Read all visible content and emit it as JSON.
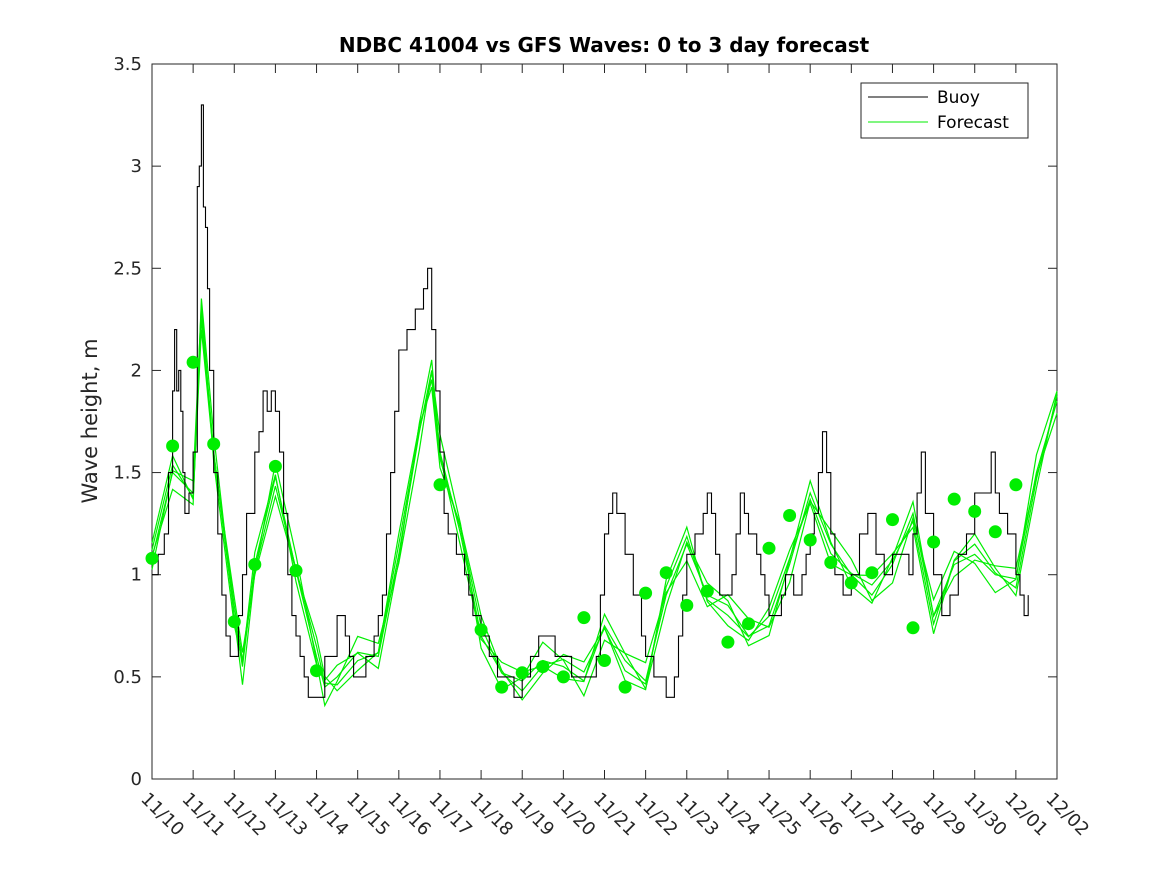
{
  "chart_data": {
    "type": "line",
    "title": "NDBC 41004 vs GFS Waves: 0 to 3 day forecast",
    "xlabel": "",
    "ylabel": "Wave height, m",
    "ylim": [
      0,
      3.5
    ],
    "yticks": [
      0,
      0.5,
      1,
      1.5,
      2,
      2.5,
      3,
      3.5
    ],
    "ytick_labels": [
      "0",
      "0.5",
      "1",
      "1.5",
      "2",
      "2.5",
      "3",
      "3.5"
    ],
    "xlim": [
      0,
      22
    ],
    "x_tick_labels": [
      "11/10",
      "11/11",
      "11/12",
      "11/13",
      "11/14",
      "11/15",
      "11/16",
      "11/17",
      "11/18",
      "11/19",
      "11/20",
      "11/21",
      "11/22",
      "11/23",
      "11/24",
      "11/25",
      "11/26",
      "11/27",
      "11/28",
      "11/29",
      "11/30",
      "12/01",
      "12/02"
    ],
    "legend": {
      "location": "top-right",
      "entries": [
        "Buoy",
        "Forecast"
      ]
    },
    "colors": {
      "buoy": "#000000",
      "forecast": "#00ee00",
      "analysis_dots": "#00ee00",
      "axes": "#262626"
    },
    "series": [
      {
        "name": "Buoy",
        "x": [
          0,
          0.15,
          0.3,
          0.4,
          0.5,
          0.55,
          0.6,
          0.65,
          0.7,
          0.75,
          0.8,
          0.9,
          1.0,
          1.1,
          1.15,
          1.2,
          1.25,
          1.3,
          1.35,
          1.4,
          1.5,
          1.6,
          1.7,
          1.8,
          1.9,
          2.0,
          2.1,
          2.2,
          2.3,
          2.5,
          2.6,
          2.7,
          2.8,
          2.9,
          3.0,
          3.1,
          3.2,
          3.3,
          3.4,
          3.5,
          3.6,
          3.7,
          3.8,
          3.9,
          4.0,
          4.2,
          4.5,
          4.7,
          4.8,
          4.9,
          5.0,
          5.2,
          5.4,
          5.5,
          5.6,
          5.7,
          5.8,
          5.9,
          6.0,
          6.2,
          6.4,
          6.6,
          6.7,
          6.8,
          6.9,
          7.0,
          7.1,
          7.2,
          7.3,
          7.4,
          7.5,
          7.6,
          7.7,
          7.8,
          8.0,
          8.2,
          8.4,
          8.6,
          8.7,
          8.8,
          9.0,
          9.2,
          9.4,
          9.6,
          9.8,
          10.0,
          10.2,
          10.3,
          10.4,
          10.6,
          10.7,
          10.8,
          10.9,
          11.0,
          11.1,
          11.2,
          11.3,
          11.5,
          11.7,
          11.9,
          12.0,
          12.2,
          12.4,
          12.5,
          12.6,
          12.7,
          12.8,
          12.9,
          13.0,
          13.2,
          13.4,
          13.5,
          13.6,
          13.7,
          13.8,
          14.0,
          14.1,
          14.2,
          14.3,
          14.4,
          14.5,
          14.7,
          14.8,
          14.9,
          15.0,
          15.2,
          15.3,
          15.4,
          15.5,
          15.6,
          15.7,
          15.8,
          15.9,
          16.0,
          16.1,
          16.2,
          16.3,
          16.4,
          16.5,
          16.6,
          16.8,
          17.0,
          17.2,
          17.4,
          17.6,
          17.8,
          18.0,
          18.2,
          18.4,
          18.5,
          18.6,
          18.7,
          18.8,
          19.0,
          19.2,
          19.4,
          19.6,
          19.8,
          20.0,
          20.2,
          20.4,
          20.5,
          20.6,
          20.8,
          21.0,
          21.1,
          21.2,
          21.3
        ],
        "values": [
          1.0,
          1.1,
          1.2,
          1.5,
          1.9,
          2.2,
          1.9,
          2.0,
          1.8,
          1.5,
          1.3,
          1.4,
          1.6,
          2.9,
          3.0,
          3.3,
          2.8,
          2.7,
          2.4,
          2.0,
          1.5,
          1.2,
          0.9,
          0.7,
          0.6,
          0.6,
          0.8,
          1.0,
          1.3,
          1.6,
          1.7,
          1.9,
          1.8,
          1.9,
          1.8,
          1.6,
          1.3,
          1.0,
          0.8,
          0.7,
          0.6,
          0.5,
          0.4,
          0.4,
          0.4,
          0.6,
          0.8,
          0.7,
          0.6,
          0.5,
          0.5,
          0.6,
          0.7,
          0.8,
          0.9,
          1.2,
          1.5,
          1.8,
          2.1,
          2.2,
          2.3,
          2.4,
          2.5,
          2.2,
          1.9,
          1.6,
          1.3,
          1.2,
          1.2,
          1.1,
          1.1,
          1.0,
          0.9,
          0.8,
          0.7,
          0.6,
          0.5,
          0.5,
          0.5,
          0.4,
          0.5,
          0.6,
          0.7,
          0.7,
          0.6,
          0.6,
          0.5,
          0.5,
          0.5,
          0.5,
          0.5,
          0.6,
          0.9,
          1.2,
          1.3,
          1.4,
          1.3,
          1.1,
          0.9,
          0.7,
          0.6,
          0.5,
          0.5,
          0.4,
          0.4,
          0.5,
          0.7,
          0.9,
          1.1,
          1.2,
          1.3,
          1.4,
          1.3,
          1.1,
          0.9,
          0.9,
          1.0,
          1.2,
          1.4,
          1.3,
          1.2,
          1.1,
          1.0,
          0.9,
          0.8,
          0.8,
          0.9,
          1.0,
          1.0,
          0.9,
          0.9,
          1.0,
          1.1,
          1.2,
          1.3,
          1.5,
          1.7,
          1.5,
          1.2,
          1.0,
          0.9,
          1.0,
          1.2,
          1.3,
          1.1,
          1.0,
          1.1,
          1.1,
          1.0,
          1.2,
          1.4,
          1.6,
          1.3,
          1.0,
          0.8,
          0.9,
          1.1,
          1.2,
          1.4,
          1.4,
          1.6,
          1.4,
          1.3,
          1.2,
          1.0,
          0.9,
          0.8,
          0.9
        ]
      },
      {
        "name": "Forecast",
        "x": [
          0,
          0.5,
          1.0,
          1.2,
          1.5,
          2.0,
          2.2,
          2.5,
          3.0,
          3.5,
          4.0,
          4.2,
          4.5,
          5.0,
          5.5,
          6.0,
          6.5,
          6.8,
          7.0,
          7.5,
          8.0,
          8.5,
          9.0,
          9.5,
          10.0,
          10.5,
          11.0,
          11.5,
          12.0,
          12.5,
          13.0,
          13.5,
          14.0,
          14.5,
          15.0,
          15.5,
          16.0,
          16.5,
          17.0,
          17.5,
          18.0,
          18.5,
          19.0,
          19.5,
          20.0,
          20.5,
          21.0,
          21.5,
          22.0
        ],
        "values": [
          1.08,
          1.5,
          1.4,
          2.3,
          1.6,
          0.8,
          0.55,
          1.05,
          1.48,
          1.02,
          0.6,
          0.45,
          0.5,
          0.62,
          0.6,
          1.1,
          1.7,
          2.0,
          1.6,
          1.2,
          0.7,
          0.52,
          0.48,
          0.58,
          0.55,
          0.48,
          0.75,
          0.58,
          0.48,
          0.9,
          1.15,
          0.9,
          0.85,
          0.7,
          0.75,
          1.05,
          1.4,
          1.15,
          1.0,
          0.9,
          1.05,
          1.3,
          0.8,
          1.05,
          1.1,
          1.0,
          0.98,
          1.5,
          1.85
        ]
      }
    ],
    "analysis_points": {
      "name": "Forecast 0-hour",
      "x": [
        0,
        0.5,
        1.0,
        1.5,
        2.0,
        2.5,
        3.0,
        3.5,
        4.0,
        8.0,
        8.5,
        9.0,
        9.5,
        10.0,
        10.5,
        11.0,
        11.5,
        12.0,
        12.5,
        13.0,
        13.5,
        14.0,
        14.5,
        15.0,
        15.5,
        16.0,
        16.5,
        17.0,
        17.5,
        18.0,
        18.5,
        19.0,
        19.5,
        20.0,
        20.5,
        21.0
      ],
      "values": [
        1.08,
        1.63,
        2.04,
        1.64,
        0.77,
        1.05,
        1.53,
        1.02,
        0.53,
        0.73,
        0.45,
        0.52,
        0.55,
        0.5,
        0.79,
        0.58,
        0.45,
        0.91,
        1.01,
        0.85,
        0.92,
        0.67,
        0.76,
        1.13,
        1.29,
        1.17,
        1.06,
        0.96,
        1.01,
        1.27,
        0.74,
        1.16,
        1.37,
        1.31,
        1.21,
        1.44
      ]
    },
    "extra_dot": {
      "x": 7.0,
      "value": 1.44
    }
  }
}
